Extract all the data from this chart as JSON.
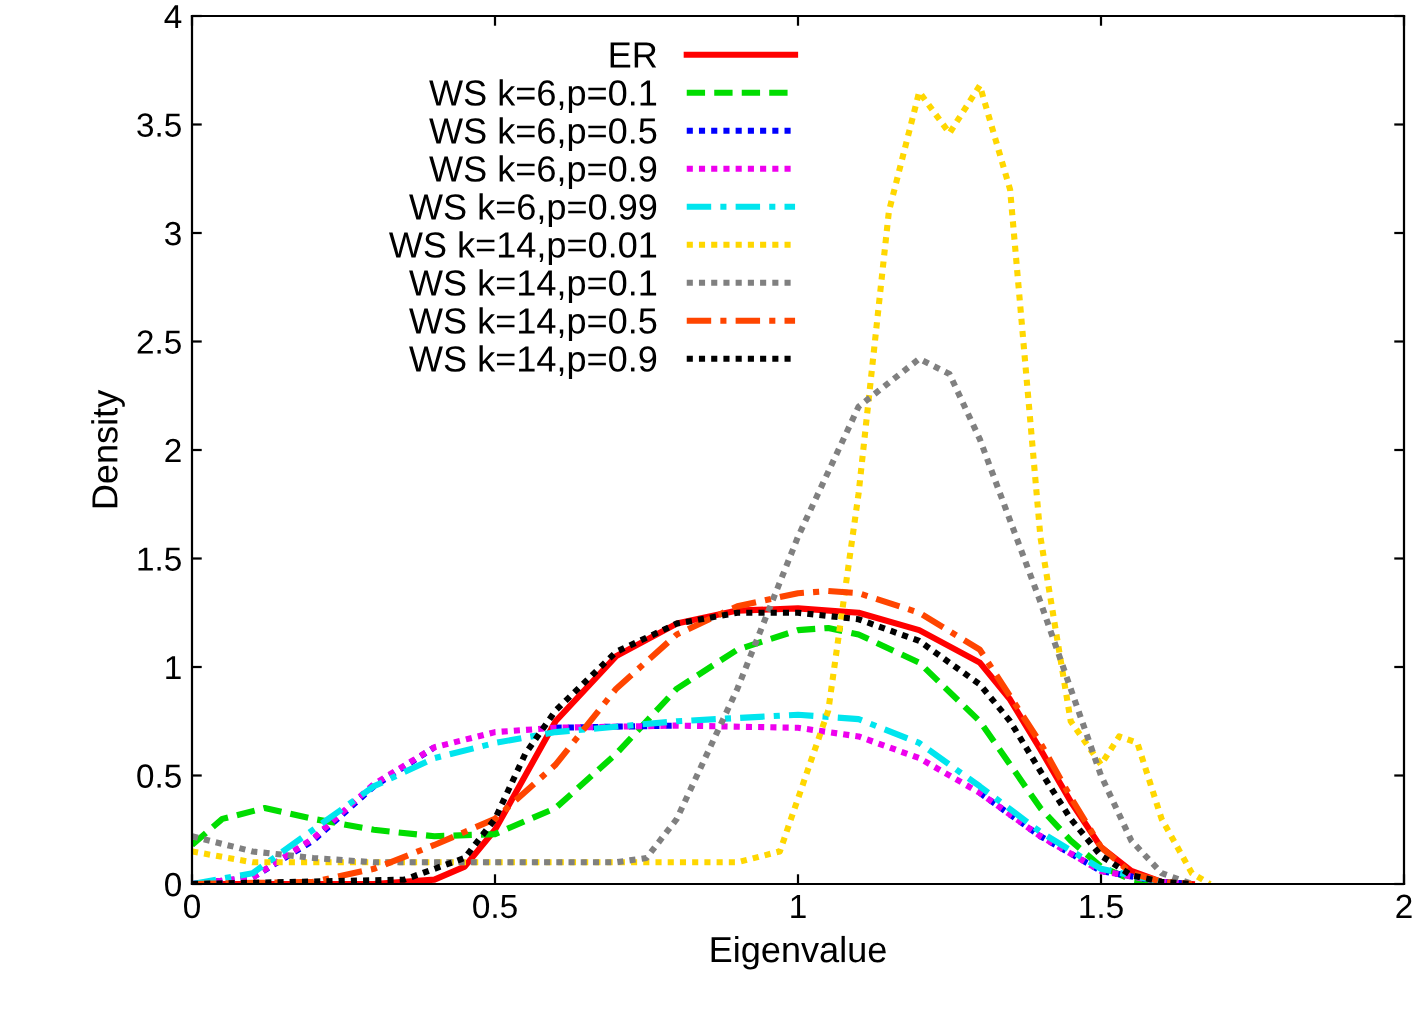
{
  "chart_data": {
    "type": "line",
    "xlabel": "Eigenvalue",
    "ylabel": "Density",
    "xlim": [
      0,
      2
    ],
    "ylim": [
      0,
      4
    ],
    "xticks": [
      0,
      0.5,
      1,
      1.5,
      2
    ],
    "yticks": [
      0,
      0.5,
      1,
      1.5,
      2,
      2.5,
      3,
      3.5,
      4
    ],
    "grid": false,
    "legend": "top",
    "marker": "none",
    "series": [
      {
        "name": "ER",
        "color": "#ff0000",
        "line_style": "solid",
        "x": [
          0,
          0.3,
          0.4,
          0.45,
          0.5,
          0.55,
          0.6,
          0.7,
          0.8,
          0.9,
          1.0,
          1.1,
          1.2,
          1.3,
          1.35,
          1.4,
          1.45,
          1.5,
          1.55,
          1.6,
          1.65
        ],
        "values": [
          0,
          0,
          0.02,
          0.08,
          0.25,
          0.5,
          0.75,
          1.05,
          1.2,
          1.26,
          1.27,
          1.25,
          1.17,
          1.02,
          0.85,
          0.62,
          0.38,
          0.17,
          0.06,
          0.01,
          0
        ]
      },
      {
        "name": "WS k=6,p=0.1",
        "color": "#00dd00",
        "line_style": "dashed",
        "x": [
          0,
          0.05,
          0.12,
          0.2,
          0.3,
          0.4,
          0.5,
          0.6,
          0.7,
          0.8,
          0.9,
          1.0,
          1.05,
          1.1,
          1.2,
          1.3,
          1.35,
          1.4,
          1.45,
          1.5,
          1.55,
          1.6
        ],
        "values": [
          0.18,
          0.3,
          0.35,
          0.3,
          0.25,
          0.22,
          0.23,
          0.35,
          0.6,
          0.9,
          1.08,
          1.17,
          1.18,
          1.15,
          1.02,
          0.75,
          0.55,
          0.35,
          0.2,
          0.08,
          0.02,
          0
        ]
      },
      {
        "name": "WS k=6,p=0.5",
        "color": "#0000ff",
        "line_style": "dotted",
        "x": [
          0,
          0.1,
          0.2,
          0.3,
          0.4,
          0.5,
          0.6,
          0.8,
          1.0,
          1.1,
          1.2,
          1.3,
          1.4,
          1.5,
          1.6,
          1.65
        ],
        "values": [
          0,
          0.03,
          0.2,
          0.45,
          0.63,
          null,
          0.72,
          0.73,
          null,
          null,
          null,
          0.42,
          0.22,
          0.06,
          0.01,
          0
        ]
      },
      {
        "name": "WS k=6,p=0.9",
        "color": "#ee00ee",
        "line_style": "dotted",
        "x": [
          0,
          0.1,
          0.2,
          0.3,
          0.4,
          0.5,
          0.6,
          0.8,
          1.0,
          1.1,
          1.2,
          1.3,
          1.4,
          1.5,
          1.6,
          1.65
        ],
        "values": [
          0,
          0.03,
          0.21,
          0.46,
          0.63,
          0.7,
          0.72,
          0.73,
          0.72,
          0.68,
          0.58,
          0.42,
          0.22,
          0.06,
          0.01,
          0
        ]
      },
      {
        "name": "WS k=6,p=0.99",
        "color": "#00e5ee",
        "line_style": "dashdot",
        "x": [
          0,
          0.1,
          0.2,
          0.3,
          0.4,
          0.5,
          0.6,
          0.8,
          1.0,
          1.1,
          1.2,
          1.3,
          1.4,
          1.5,
          1.6,
          1.65
        ],
        "values": [
          0,
          0.05,
          0.25,
          0.45,
          0.58,
          0.65,
          0.7,
          0.75,
          0.78,
          0.76,
          0.65,
          0.45,
          0.24,
          0.07,
          0.01,
          0
        ]
      },
      {
        "name": "WS k=14,p=0.01",
        "color": "#ffd700",
        "line_style": "dotted",
        "x": [
          0,
          0.1,
          0.3,
          0.9,
          0.97,
          1.05,
          1.1,
          1.15,
          1.2,
          1.25,
          1.3,
          1.35,
          1.4,
          1.45,
          1.5,
          1.53,
          1.56,
          1.6,
          1.65,
          1.68
        ],
        "values": [
          0.15,
          0.1,
          0.1,
          0.1,
          0.15,
          0.8,
          1.8,
          3.1,
          3.65,
          3.46,
          3.68,
          3.2,
          1.6,
          0.75,
          0.55,
          0.68,
          0.65,
          0.3,
          0.05,
          0
        ]
      },
      {
        "name": "WS k=14,p=0.1",
        "color": "#808080",
        "line_style": "dotted",
        "x": [
          0,
          0.1,
          0.2,
          0.3,
          0.7,
          0.75,
          0.8,
          0.9,
          1.0,
          1.1,
          1.2,
          1.25,
          1.3,
          1.4,
          1.45,
          1.5,
          1.55,
          1.6,
          1.65
        ],
        "values": [
          0.22,
          0.15,
          0.12,
          0.1,
          0.1,
          0.12,
          0.3,
          0.9,
          1.6,
          2.2,
          2.42,
          2.35,
          2.05,
          1.3,
          0.9,
          0.5,
          0.2,
          0.05,
          0
        ]
      },
      {
        "name": "WS k=14,p=0.5",
        "color": "#ff4500",
        "line_style": "dashdot",
        "x": [
          0,
          0.2,
          0.3,
          0.4,
          0.5,
          0.6,
          0.7,
          0.8,
          0.9,
          1.0,
          1.05,
          1.1,
          1.2,
          1.3,
          1.4,
          1.45,
          1.5,
          1.55,
          1.6,
          1.65
        ],
        "values": [
          0,
          0.01,
          0.07,
          0.18,
          0.3,
          0.55,
          0.9,
          1.15,
          1.28,
          1.34,
          1.35,
          1.34,
          1.25,
          1.08,
          0.65,
          0.4,
          0.17,
          0.05,
          0.01,
          0
        ]
      },
      {
        "name": "WS k=14,p=0.9",
        "color": "#000000",
        "line_style": "dotted",
        "x": [
          0,
          0.35,
          0.45,
          0.5,
          0.55,
          0.6,
          0.7,
          0.8,
          0.9,
          1.0,
          1.1,
          1.2,
          1.3,
          1.35,
          1.4,
          1.45,
          1.5,
          1.55,
          1.6,
          1.65
        ],
        "values": [
          0,
          0.02,
          0.12,
          0.3,
          0.6,
          0.8,
          1.07,
          1.2,
          1.25,
          1.25,
          1.22,
          1.12,
          0.92,
          0.75,
          0.52,
          0.3,
          0.13,
          0.04,
          0.01,
          0
        ]
      }
    ]
  }
}
